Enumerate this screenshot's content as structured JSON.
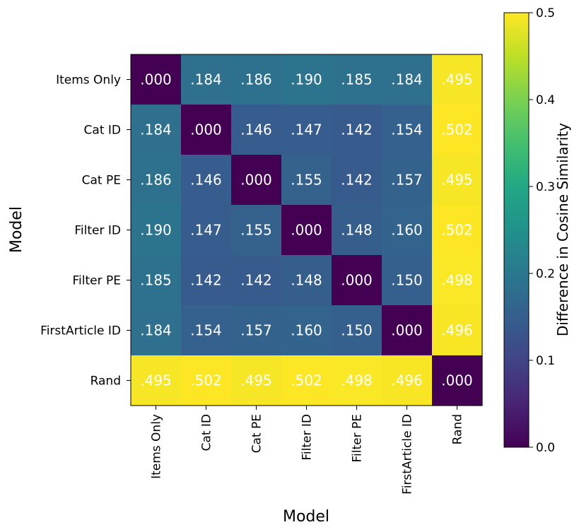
{
  "chart_data": {
    "type": "heatmap",
    "title": "",
    "xlabel": "Model",
    "ylabel": "Model",
    "categories": [
      "Items Only",
      "Cat ID",
      "Cat PE",
      "Filter ID",
      "Filter PE",
      "FirstArticle ID",
      "Rand"
    ],
    "values": [
      [
        0.0,
        0.184,
        0.186,
        0.19,
        0.185,
        0.184,
        0.495
      ],
      [
        0.184,
        0.0,
        0.146,
        0.147,
        0.142,
        0.154,
        0.502
      ],
      [
        0.186,
        0.146,
        0.0,
        0.155,
        0.142,
        0.157,
        0.495
      ],
      [
        0.19,
        0.147,
        0.155,
        0.0,
        0.148,
        0.16,
        0.502
      ],
      [
        0.185,
        0.142,
        0.142,
        0.148,
        0.0,
        0.15,
        0.498
      ],
      [
        0.184,
        0.154,
        0.157,
        0.16,
        0.15,
        0.0,
        0.496
      ],
      [
        0.495,
        0.502,
        0.495,
        0.502,
        0.498,
        0.496,
        0.0
      ]
    ],
    "cell_labels": [
      [
        ".000",
        ".184",
        ".186",
        ".190",
        ".185",
        ".184",
        ".495"
      ],
      [
        ".184",
        ".000",
        ".146",
        ".147",
        ".142",
        ".154",
        ".502"
      ],
      [
        ".186",
        ".146",
        ".000",
        ".155",
        ".142",
        ".157",
        ".495"
      ],
      [
        ".190",
        ".147",
        ".155",
        ".000",
        ".148",
        ".160",
        ".502"
      ],
      [
        ".185",
        ".142",
        ".142",
        ".148",
        ".000",
        ".150",
        ".498"
      ],
      [
        ".184",
        ".154",
        ".157",
        ".160",
        ".150",
        ".000",
        ".496"
      ],
      [
        ".495",
        ".502",
        ".495",
        ".502",
        ".498",
        ".496",
        ".000"
      ]
    ],
    "colorbar": {
      "label": "Difference in Cosine Similarity",
      "range": [
        0.0,
        0.5
      ],
      "ticks": [
        0.0,
        0.1,
        0.2,
        0.3,
        0.4,
        0.5
      ],
      "tick_labels": [
        "0.0",
        "0.1",
        "0.2",
        "0.3",
        "0.4",
        "0.5"
      ],
      "colormap": "viridis"
    },
    "colors": {
      "cell_text": "#ffffff",
      "axis": "#000000"
    }
  }
}
